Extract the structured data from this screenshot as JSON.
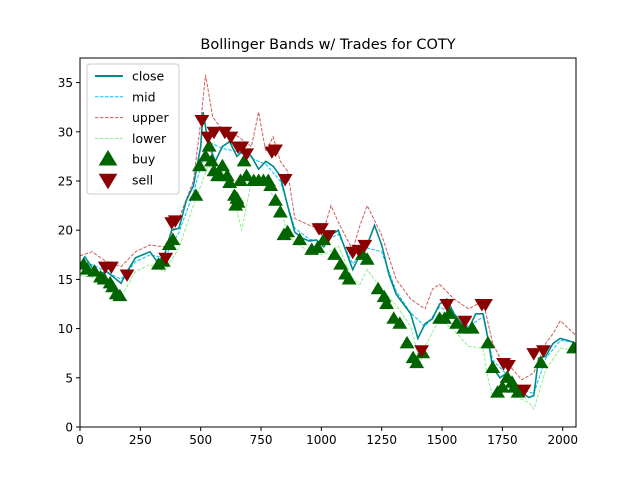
{
  "chart_data": {
    "type": "line",
    "title": "Bollinger Bands w/ Trades for COTY",
    "xlabel": "",
    "ylabel": "",
    "xlim": [
      0,
      2055
    ],
    "ylim": [
      0,
      37.5
    ],
    "xticks": [
      0,
      250,
      500,
      750,
      1000,
      1250,
      1500,
      1750,
      2000
    ],
    "yticks": [
      0,
      5,
      10,
      15,
      20,
      25,
      30,
      35
    ],
    "legend": {
      "position": "top-left"
    },
    "colors": {
      "close": "#008b8b",
      "mid": "#00bfff",
      "upper": "#cd5c5c",
      "lower": "#90ee90",
      "buy": "#006400",
      "sell": "#8b0000"
    },
    "series": [
      {
        "name": "close",
        "style": "solid",
        "x": [
          0,
          20,
          50,
          80,
          110,
          140,
          170,
          200,
          230,
          260,
          290,
          320,
          350,
          380,
          410,
          440,
          470,
          500,
          510,
          530,
          560,
          590,
          620,
          650,
          680,
          710,
          740,
          770,
          800,
          830,
          860,
          890,
          920,
          950,
          980,
          1010,
          1040,
          1070,
          1100,
          1130,
          1160,
          1190,
          1220,
          1250,
          1280,
          1310,
          1340,
          1370,
          1400,
          1430,
          1460,
          1490,
          1520,
          1550,
          1580,
          1610,
          1640,
          1670,
          1690,
          1710,
          1740,
          1770,
          1800,
          1830,
          1860,
          1880,
          1900,
          1930,
          1960,
          1990,
          2020,
          2055
        ],
        "y": [
          16.5,
          17.3,
          16.2,
          15.6,
          15.8,
          15.2,
          14.6,
          16.0,
          17.2,
          17.5,
          17.8,
          16.8,
          17.5,
          20.0,
          20.2,
          23.0,
          24.5,
          28.5,
          32.0,
          29.0,
          27.0,
          28.5,
          29.0,
          27.5,
          28.2,
          27.5,
          26.2,
          27.0,
          26.5,
          25.5,
          22.5,
          19.8,
          19.2,
          18.9,
          19.0,
          18.3,
          19.5,
          20.0,
          18.0,
          16.0,
          17.5,
          18.5,
          20.5,
          18.5,
          15.5,
          13.5,
          12.5,
          11.5,
          9.0,
          10.5,
          11.0,
          12.5,
          13.0,
          11.5,
          10.5,
          10.0,
          11.5,
          11.5,
          9.0,
          6.0,
          5.0,
          5.5,
          4.5,
          3.5,
          3.0,
          3.2,
          7.0,
          7.2,
          8.5,
          9.0,
          8.8,
          8.5
        ]
      },
      {
        "name": "mid",
        "style": "dashed",
        "x": [
          0,
          50,
          110,
          170,
          230,
          290,
          350,
          410,
          470,
          530,
          590,
          650,
          710,
          770,
          830,
          890,
          950,
          1010,
          1070,
          1130,
          1190,
          1250,
          1310,
          1370,
          1430,
          1490,
          1550,
          1610,
          1670,
          1710,
          1770,
          1830,
          1880,
          1930,
          1990,
          2055
        ],
        "y": [
          16.4,
          16.5,
          15.8,
          15.0,
          16.8,
          17.5,
          17.2,
          19.8,
          23.8,
          29.0,
          28.3,
          28.0,
          27.3,
          26.7,
          25.0,
          20.2,
          19.1,
          18.8,
          19.6,
          16.6,
          18.2,
          17.8,
          13.8,
          11.6,
          10.2,
          12.2,
          11.5,
          10.2,
          11.2,
          6.8,
          5.3,
          3.8,
          3.4,
          7.0,
          8.8,
          8.6
        ]
      },
      {
        "name": "upper",
        "style": "dashed",
        "x": [
          0,
          50,
          110,
          170,
          230,
          290,
          350,
          410,
          470,
          500,
          520,
          550,
          590,
          650,
          710,
          740,
          770,
          800,
          830,
          860,
          890,
          950,
          1010,
          1040,
          1070,
          1130,
          1160,
          1190,
          1250,
          1310,
          1370,
          1430,
          1460,
          1490,
          1550,
          1610,
          1670,
          1710,
          1740,
          1770,
          1830,
          1880,
          1930,
          1960,
          1990,
          2055
        ],
        "y": [
          17.4,
          17.8,
          16.8,
          16.3,
          17.8,
          18.5,
          18.3,
          21.2,
          25.0,
          31.0,
          35.8,
          31.5,
          30.2,
          29.6,
          28.5,
          32.0,
          28.0,
          29.5,
          27.0,
          26.0,
          21.2,
          20.5,
          20.0,
          22.5,
          20.8,
          18.0,
          20.5,
          22.5,
          19.5,
          15.0,
          13.0,
          12.0,
          14.0,
          14.5,
          13.0,
          12.0,
          12.8,
          8.5,
          7.0,
          6.5,
          4.8,
          5.5,
          8.5,
          9.5,
          10.8,
          9.3
        ]
      },
      {
        "name": "lower",
        "style": "dashed",
        "x": [
          0,
          50,
          110,
          170,
          230,
          290,
          350,
          410,
          470,
          530,
          590,
          620,
          650,
          670,
          710,
          770,
          830,
          860,
          890,
          950,
          1010,
          1070,
          1130,
          1160,
          1190,
          1250,
          1310,
          1370,
          1410,
          1430,
          1490,
          1550,
          1610,
          1670,
          1690,
          1710,
          1770,
          1830,
          1860,
          1880,
          1930,
          1990,
          2055
        ],
        "y": [
          15.4,
          15.2,
          14.8,
          13.2,
          15.8,
          16.5,
          15.8,
          18.2,
          22.5,
          26.5,
          25.5,
          25.0,
          22.0,
          20.0,
          25.0,
          24.5,
          22.5,
          19.5,
          18.8,
          17.8,
          17.5,
          18.4,
          15.0,
          14.5,
          16.0,
          14.0,
          12.4,
          10.2,
          6.5,
          8.2,
          11.0,
          9.8,
          8.2,
          8.0,
          5.0,
          3.0,
          4.0,
          2.8,
          2.5,
          1.8,
          5.8,
          8.0,
          7.8
        ]
      },
      {
        "name": "buy",
        "style": "marker",
        "x": [
          15,
          30,
          60,
          85,
          100,
          125,
          135,
          150,
          165,
          325,
          345,
          370,
          385,
          480,
          495,
          520,
          535,
          545,
          555,
          570,
          580,
          590,
          610,
          620,
          640,
          645,
          650,
          655,
          665,
          680,
          690,
          720,
          740,
          760,
          780,
          790,
          810,
          830,
          845,
          860,
          910,
          960,
          985,
          1010,
          1055,
          1080,
          1100,
          1115,
          1170,
          1190,
          1235,
          1260,
          1270,
          1300,
          1325,
          1355,
          1380,
          1395,
          1420,
          1490,
          1510,
          1530,
          1560,
          1590,
          1625,
          1690,
          1710,
          1730,
          1750,
          1770,
          1790,
          1800,
          1815,
          1910,
          2045
        ],
        "y": [
          16.5,
          16.0,
          15.8,
          15.2,
          15.0,
          14.6,
          14.2,
          13.5,
          13.3,
          16.5,
          16.8,
          18.5,
          19.0,
          23.5,
          26.5,
          27.5,
          28.5,
          27.0,
          26.0,
          25.5,
          25.5,
          26.5,
          25.5,
          24.8,
          23.5,
          22.5,
          23.2,
          22.8,
          25.0,
          27.0,
          25.5,
          25.0,
          25.0,
          25.0,
          25.0,
          24.5,
          23.0,
          21.8,
          19.5,
          19.8,
          19.0,
          18.0,
          18.2,
          19.0,
          17.5,
          16.5,
          15.5,
          15.0,
          17.5,
          17.0,
          14.0,
          13.2,
          12.5,
          11.0,
          10.5,
          8.5,
          7.0,
          6.5,
          7.5,
          11.0,
          11.0,
          11.5,
          10.5,
          10.0,
          10.0,
          8.5,
          6.0,
          3.5,
          4.0,
          5.0,
          4.5,
          4.0,
          3.5,
          6.5,
          8.0
        ]
      },
      {
        "name": "sell",
        "style": "marker",
        "x": [
          105,
          130,
          195,
          355,
          380,
          395,
          505,
          530,
          555,
          600,
          625,
          655,
          670,
          690,
          795,
          810,
          850,
          990,
          1000,
          1030,
          1130,
          1155,
          1180,
          1415,
          1520,
          1595,
          1665,
          1680,
          1755,
          1775,
          1840,
          1880,
          1920
        ],
        "y": [
          16.3,
          16.3,
          15.5,
          17.2,
          20.8,
          21.0,
          31.2,
          29.5,
          30.0,
          30.0,
          29.5,
          28.5,
          28.5,
          27.8,
          28.0,
          28.2,
          25.2,
          20.2,
          20.2,
          19.5,
          17.8,
          18.0,
          18.5,
          7.8,
          12.5,
          10.8,
          12.5,
          12.5,
          6.5,
          6.3,
          3.8,
          7.5,
          7.8
        ]
      }
    ]
  }
}
